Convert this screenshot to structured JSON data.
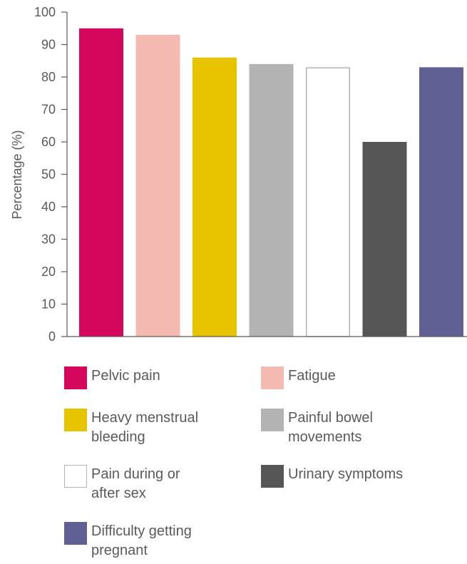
{
  "chart_data": {
    "type": "bar",
    "title": "",
    "xlabel": "",
    "ylabel": "Percentage (%)",
    "ylim": [
      0,
      100
    ],
    "yticks": [
      0,
      10,
      20,
      30,
      40,
      50,
      60,
      70,
      80,
      90,
      100
    ],
    "grid": false,
    "legend_position": "bottom",
    "categories": [
      "Pelvic pain",
      "Fatigue",
      "Heavy menstrual bleeding",
      "Painful bowel movements",
      "Pain during or after sex",
      "Urinary symptoms",
      "Difficulty getting pregnant"
    ],
    "values": [
      95,
      93,
      86,
      84,
      83,
      60,
      83
    ],
    "colors": [
      "#d5075c",
      "#f4b9b0",
      "#e8c300",
      "#b3b3b3",
      "#ffffff",
      "#555555",
      "#606094"
    ]
  },
  "legend": {
    "items": [
      {
        "lines": [
          "Pelvic pain"
        ],
        "color": "#d5075c"
      },
      {
        "lines": [
          "Fatigue"
        ],
        "color": "#f4b9b0"
      },
      {
        "lines": [
          "Heavy menstrual",
          "bleeding"
        ],
        "color": "#e8c300"
      },
      {
        "lines": [
          "Painful bowel",
          "movements"
        ],
        "color": "#b3b3b3"
      },
      {
        "lines": [
          "Pain during or",
          "after sex"
        ],
        "color": "#ffffff"
      },
      {
        "lines": [
          "Urinary symptoms"
        ],
        "color": "#555555"
      },
      {
        "lines": [
          "Difficulty getting",
          "pregnant"
        ],
        "color": "#606094"
      }
    ]
  }
}
